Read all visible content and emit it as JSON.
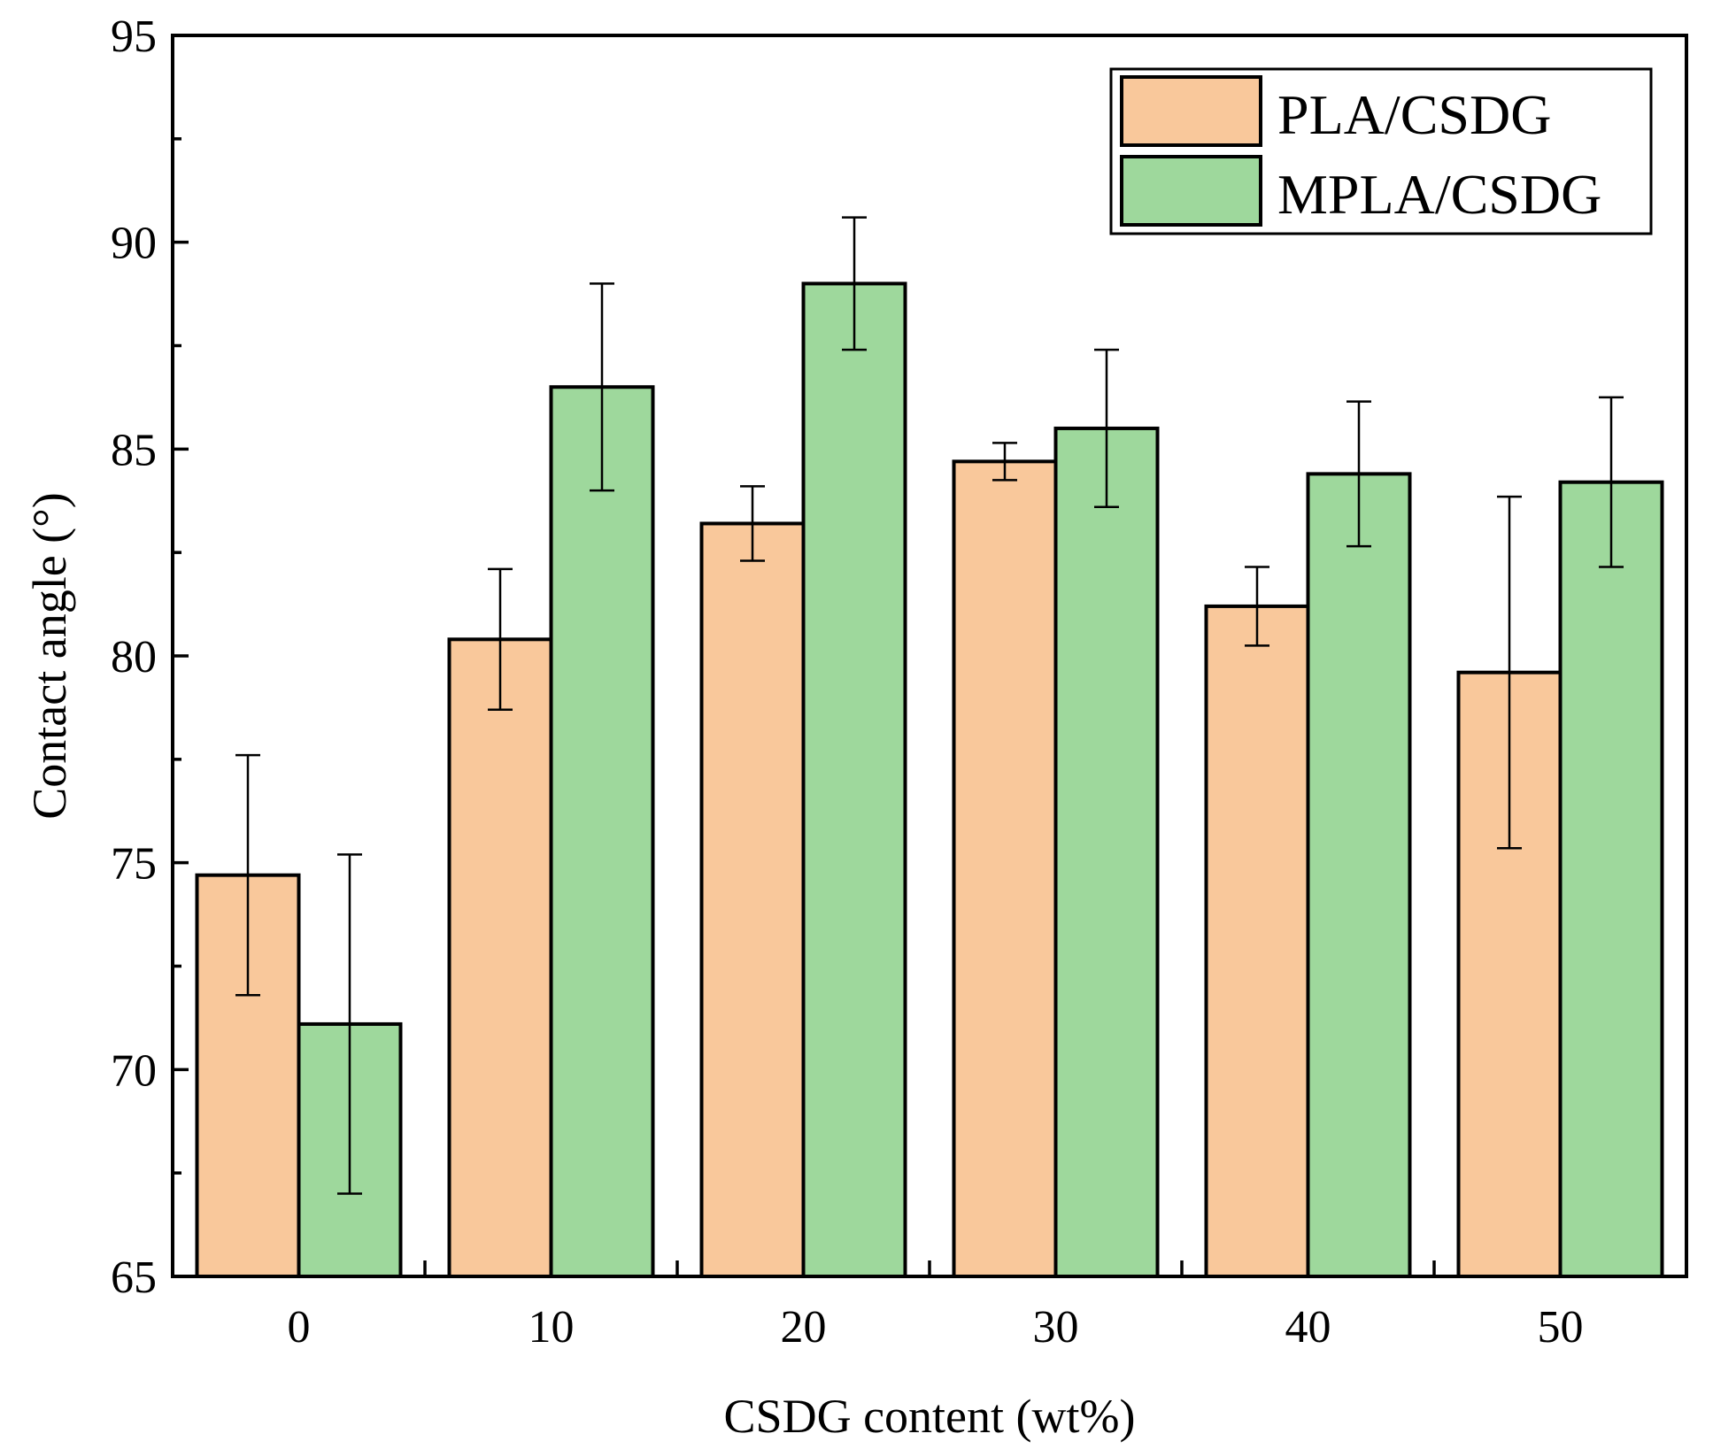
{
  "chart_data": {
    "type": "bar",
    "title": "",
    "xlabel": "CSDG content (wt%)",
    "ylabel": "Contact angle (°)",
    "categories": [
      "0",
      "10",
      "20",
      "30",
      "40",
      "50"
    ],
    "ylim": [
      65,
      95
    ],
    "yticks": [
      "65",
      "70",
      "75",
      "80",
      "85",
      "90",
      "95"
    ],
    "grid": false,
    "legend_position": "top-right",
    "series": [
      {
        "name": "PLA/CSDG",
        "color": "#F9C89B",
        "values": [
          74.7,
          80.4,
          83.2,
          84.7,
          81.2,
          79.6
        ],
        "errors": [
          2.9,
          1.7,
          0.9,
          0.45,
          0.95,
          4.25
        ]
      },
      {
        "name": "MPLA/CSDG",
        "color": "#9ED89C",
        "values": [
          71.1,
          86.5,
          89.0,
          85.5,
          84.4,
          84.2
        ],
        "errors": [
          4.1,
          2.5,
          1.6,
          1.9,
          1.75,
          2.05
        ]
      }
    ]
  }
}
